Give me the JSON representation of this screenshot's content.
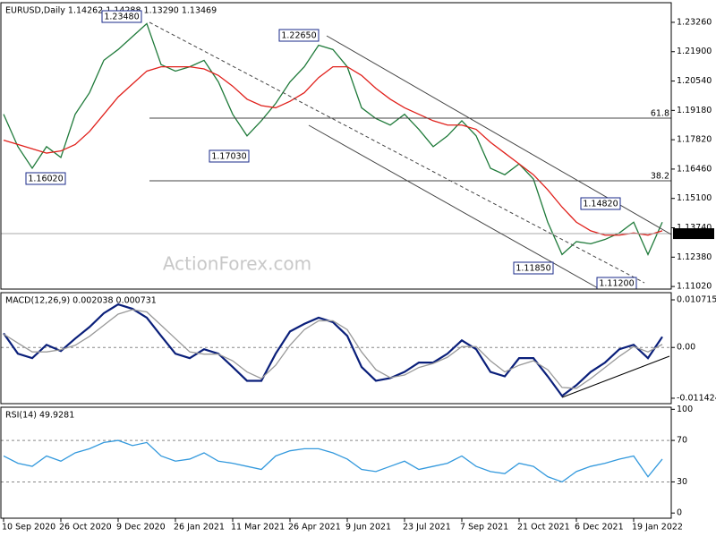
{
  "chart_data": [
    {
      "type": "line",
      "title": "EURUSD,Daily 1.14262 1.14288 1.13290 1.13469",
      "series": [
        {
          "color": "#1f7a3a",
          "values": [
            1.19,
            1.175,
            1.165,
            1.175,
            1.17,
            1.19,
            1.2,
            1.215,
            1.22,
            1.226,
            1.232,
            1.213,
            1.21,
            1.212,
            1.215,
            1.205,
            1.19,
            1.18,
            1.187,
            1.195,
            1.205,
            1.212,
            1.222,
            1.22,
            1.212,
            1.193,
            1.188,
            1.185,
            1.19,
            1.183,
            1.175,
            1.18,
            1.187,
            1.18,
            1.165,
            1.162,
            1.167,
            1.16,
            1.14,
            1.125,
            1.131,
            1.13,
            1.132,
            1.135,
            1.14,
            1.125,
            1.14
          ]
        },
        {
          "color": "#e0201b",
          "values": [
            1.178,
            1.176,
            1.174,
            1.172,
            1.173,
            1.176,
            1.182,
            1.19,
            1.198,
            1.204,
            1.21,
            1.212,
            1.212,
            1.212,
            1.211,
            1.208,
            1.203,
            1.197,
            1.194,
            1.193,
            1.196,
            1.2,
            1.207,
            1.212,
            1.212,
            1.208,
            1.202,
            1.197,
            1.193,
            1.19,
            1.187,
            1.185,
            1.185,
            1.183,
            1.177,
            1.172,
            1.167,
            1.162,
            1.155,
            1.147,
            1.14,
            1.136,
            1.134,
            1.134,
            1.135,
            1.134,
            1.136
          ]
        }
      ],
      "ylim": [
        1.109,
        1.2417
      ],
      "yticks": [
        {
          "value": 1.2326,
          "label": "1.23260"
        },
        {
          "value": 1.219,
          "label": "1.21900"
        },
        {
          "value": 1.2054,
          "label": "1.20540"
        },
        {
          "value": 1.1918,
          "label": "1.19180"
        },
        {
          "value": 1.1782,
          "label": "1.17820"
        },
        {
          "value": 1.1646,
          "label": "1.16460"
        },
        {
          "value": 1.151,
          "label": "1.15100"
        },
        {
          "value": 1.1374,
          "label": "1.13740"
        },
        {
          "value": 1.1238,
          "label": "1.12380"
        },
        {
          "value": 1.1102,
          "label": "1.11020"
        }
      ],
      "last_price": {
        "value": 1.13469,
        "label": "1.13469"
      },
      "annotations": [
        "1.23480",
        "1.22650",
        "1.16020",
        "1.17030",
        "1.14820",
        "1.11850",
        "1.11200",
        "61.8",
        "38.2"
      ],
      "watermark": "ActionForex.com"
    },
    {
      "type": "line",
      "title": "MACD(12,26,9) 0.002038 0.000731",
      "series": [
        {
          "color": "#0a1f7a",
          "values": [
            0.0032,
            -0.0014,
            -0.0024,
            0.0006,
            -0.0008,
            0.002,
            0.0046,
            0.0077,
            0.0097,
            0.0087,
            0.0067,
            0.0026,
            -0.0014,
            -0.0024,
            -0.0004,
            -0.0014,
            -0.0044,
            -0.0075,
            -0.0075,
            -0.0014,
            0.0036,
            0.0053,
            0.0067,
            0.0057,
            0.0026,
            -0.0044,
            -0.0075,
            -0.0069,
            -0.0055,
            -0.0034,
            -0.0034,
            -0.0014,
            0.0016,
            -0.0004,
            -0.0055,
            -0.0065,
            -0.0024,
            -0.0024,
            -0.0065,
            -0.0109,
            -0.0085,
            -0.0055,
            -0.0034,
            -0.0004,
            0.0006,
            -0.0024,
            0.0024
          ]
        },
        {
          "color": "#999999",
          "values": [
            0.003,
            0.001,
            -0.001,
            -0.001,
            -0.0005,
            0.0005,
            0.0025,
            0.005,
            0.0075,
            0.0085,
            0.008,
            0.005,
            0.002,
            -0.001,
            -0.0015,
            -0.0015,
            -0.003,
            -0.0055,
            -0.007,
            -0.004,
            0.0005,
            0.004,
            0.006,
            0.006,
            0.004,
            -0.001,
            -0.005,
            -0.0068,
            -0.0062,
            -0.0045,
            -0.0036,
            -0.0022,
            0.0002,
            0.0002,
            -0.003,
            -0.0055,
            -0.004,
            -0.003,
            -0.005,
            -0.009,
            -0.0092,
            -0.007,
            -0.0045,
            -0.002,
            0.0002,
            -0.001,
            0.0007
          ]
        }
      ],
      "ylim": [
        -0.01264,
        0.01233
      ],
      "yticks": [
        0.010715,
        {
          "value": 0,
          "label": "0.00"
        },
        -0.011424
      ],
      "levels": [
        0
      ]
    },
    {
      "type": "line",
      "title": "RSI(14) 49.9281",
      "series": [
        {
          "color": "#3399dd",
          "values": [
            55,
            48,
            45,
            55,
            50,
            58,
            62,
            68,
            70,
            65,
            68,
            55,
            50,
            52,
            58,
            50,
            48,
            45,
            42,
            55,
            60,
            62,
            62,
            58,
            52,
            42,
            40,
            45,
            50,
            42,
            45,
            48,
            55,
            45,
            40,
            38,
            48,
            45,
            35,
            30,
            40,
            45,
            48,
            52,
            55,
            35,
            52
          ]
        }
      ],
      "ylim": [
        -5,
        102
      ],
      "yticks": [
        100,
        70,
        30,
        0
      ],
      "levels": [
        70,
        30
      ],
      "categories": [
        "10 Sep 2020",
        null,
        null,
        null,
        "26 Oct 2020",
        null,
        null,
        null,
        "9 Dec 2020",
        null,
        null,
        null,
        "26 Jan 2021",
        null,
        null,
        null,
        "11 Mar 2021",
        null,
        null,
        null,
        "26 Apr 2021",
        null,
        null,
        null,
        "9 Jun 2021",
        null,
        null,
        null,
        "23 Jul 2021",
        null,
        null,
        null,
        "7 Sep 2021",
        null,
        null,
        null,
        "21 Oct 2021",
        null,
        null,
        null,
        "6 Dec 2021",
        null,
        null,
        null,
        "19 Jan 2022",
        null,
        null
      ]
    }
  ]
}
